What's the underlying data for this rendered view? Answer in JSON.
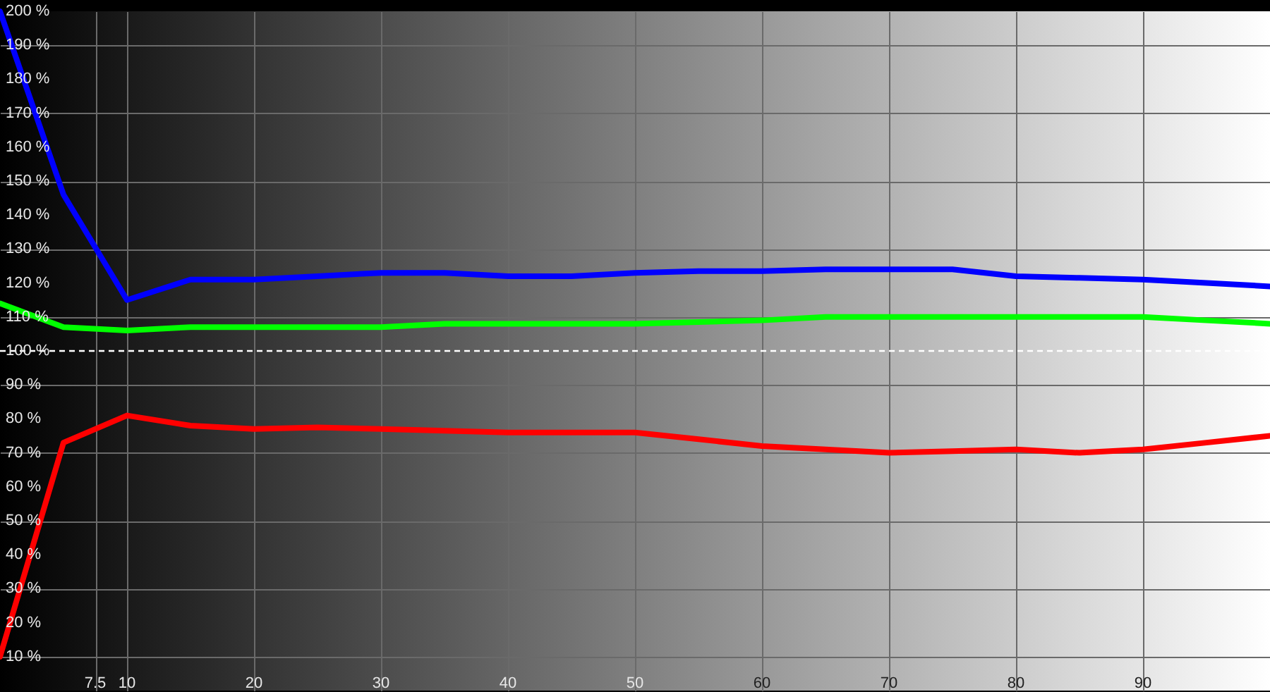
{
  "chart_data": {
    "type": "line",
    "x": [
      0,
      5,
      10,
      15,
      20,
      25,
      30,
      35,
      40,
      45,
      50,
      55,
      60,
      65,
      70,
      75,
      80,
      85,
      90,
      95,
      100
    ],
    "series": [
      {
        "color": "#0000ff",
        "values": [
          200,
          146,
          115,
          121,
          121,
          122,
          123,
          123,
          122,
          122,
          123,
          123.5,
          123.5,
          124,
          124,
          124,
          122,
          121.5,
          121,
          120,
          119
        ]
      },
      {
        "color": "#00ff00",
        "values": [
          114,
          107,
          106,
          107,
          107,
          107,
          107,
          108,
          108,
          108,
          108,
          108.5,
          109,
          110,
          110,
          110,
          110,
          110,
          110,
          109,
          108
        ]
      },
      {
        "color": "#ff0000",
        "values": [
          10,
          73,
          81,
          78,
          77,
          77.5,
          77,
          76.5,
          76,
          76,
          76,
          74,
          72,
          71,
          70,
          70.5,
          71,
          70,
          71,
          73,
          75
        ]
      }
    ],
    "xlim": [
      0,
      100
    ],
    "ylim": [
      0,
      200
    ],
    "xticks": [
      7.5,
      10,
      20,
      30,
      40,
      50,
      60,
      70,
      80,
      90
    ],
    "yticks": [
      {
        "value": 10,
        "label": "10 %"
      },
      {
        "value": 20,
        "label": "20 %"
      },
      {
        "value": 30,
        "label": "30 %"
      },
      {
        "value": 40,
        "label": "40 %"
      },
      {
        "value": 50,
        "label": "50 %"
      },
      {
        "value": 60,
        "label": "60 %"
      },
      {
        "value": 70,
        "label": "70 %"
      },
      {
        "value": 80,
        "label": "80 %"
      },
      {
        "value": 90,
        "label": "90 %"
      },
      {
        "value": 100,
        "label": "100 %"
      },
      {
        "value": 110,
        "label": "110 %"
      },
      {
        "value": 120,
        "label": "120 %"
      },
      {
        "value": 130,
        "label": "130 %"
      },
      {
        "value": 140,
        "label": "140 %"
      },
      {
        "value": 150,
        "label": "150 %"
      },
      {
        "value": 160,
        "label": "160 %"
      },
      {
        "value": 170,
        "label": "170 %"
      },
      {
        "value": 180,
        "label": "180 %"
      },
      {
        "value": 190,
        "label": "190 %"
      },
      {
        "value": 200,
        "label": "200 %"
      }
    ],
    "grid": true,
    "ref_lines": [
      {
        "axis": "y",
        "value": 100,
        "color": "#ffffff",
        "line_style": "dashed"
      }
    ]
  }
}
